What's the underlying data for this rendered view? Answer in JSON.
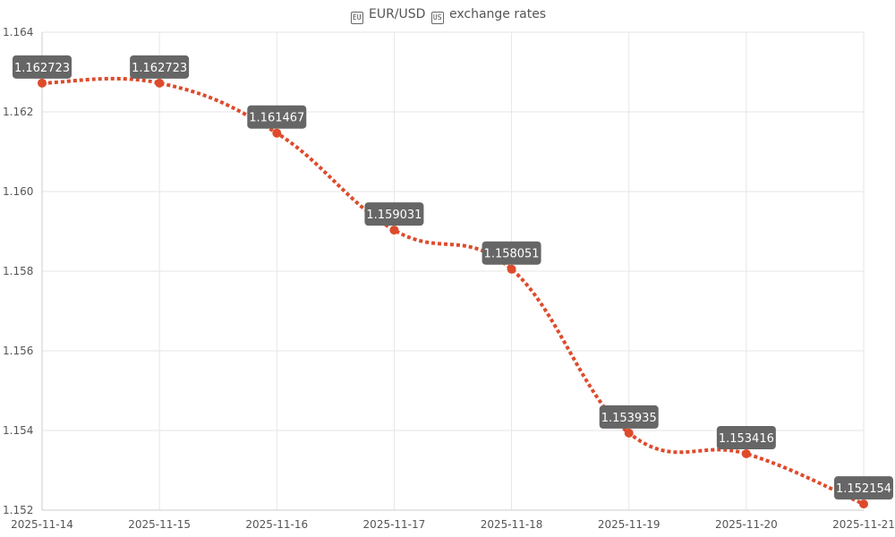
{
  "title": {
    "base_flag": "EU",
    "pair": "EUR/USD",
    "quote_flag": "US",
    "text": "exchange rates"
  },
  "chart_data": {
    "type": "line",
    "title": "EUR/USD exchange rates",
    "x": [
      "2025-11-14",
      "2025-11-15",
      "2025-11-16",
      "2025-11-17",
      "2025-11-18",
      "2025-11-19",
      "2025-11-20",
      "2025-11-21"
    ],
    "series": [
      {
        "values": [
          1.162723,
          1.162723,
          1.161467,
          1.159031,
          1.158051,
          1.153935,
          1.153416,
          1.152154
        ],
        "color": "#dd4b2c",
        "line_style": "dotted"
      }
    ],
    "data_labels": [
      "1.162723",
      "1.162723",
      "1.161467",
      "1.159031",
      "1.158051",
      "1.153935",
      "1.153416",
      "1.152154"
    ],
    "ylim": [
      1.152,
      1.164
    ],
    "yticks": [
      "1.152",
      "1.154",
      "1.156",
      "1.158",
      "1.160",
      "1.162",
      "1.164"
    ],
    "grid": true,
    "label_bg": "#666666",
    "label_color": "#ffffff",
    "grid_color": "#e6e6e6"
  }
}
